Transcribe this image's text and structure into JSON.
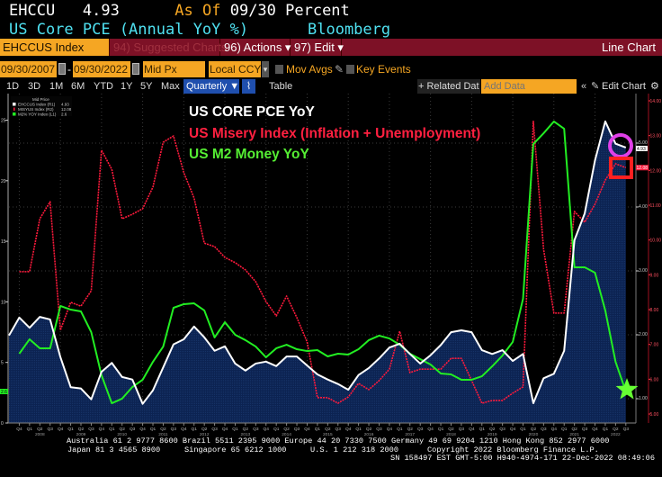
{
  "header": {
    "ticker": "EHCCU",
    "value": "4.93",
    "as_of_label": "As Of",
    "as_of": "09/30 Percent",
    "description": "US Core PCE (Annual YoY %)",
    "source": "Bloomberg"
  },
  "toolbar": {
    "security": "EHCCUS Index",
    "suggested": "94) Suggested Charts",
    "actions": "96) Actions ▾",
    "edit": "97) Edit ▾",
    "chart_type": "Line Chart"
  },
  "controls": {
    "start_date": "09/30/2007",
    "dash": "-",
    "end_date": "09/30/2022",
    "price_field": "Mid Px",
    "currency": "Local CCY",
    "mov_avgs": "Mov Avgs",
    "key_events": "Key Events"
  },
  "periods": [
    "1D",
    "3D",
    "1M",
    "6M",
    "YTD",
    "1Y",
    "5Y",
    "Max"
  ],
  "frequency": "Quarterly ▼",
  "table_label": "Table",
  "related": "+ Related Dat",
  "add_data_placeholder": "Add Data",
  "edit_chart": "Edit Chart",
  "colors": {
    "core_pce": "#ffffff",
    "misery": "#ff1a3c",
    "m2": "#22ee22",
    "fill": "#0c2352",
    "bar": "#7d1126",
    "field": "#f5a623",
    "annotation_circle": "#e040e8",
    "annotation_square": "#ff2020",
    "annotation_star": "#66ff33"
  },
  "footer": {
    "line1": "Australia 61 2 9777 8600 Brazil 5511 2395 9000 Europe 44 20 7330 7500 Germany 49 69 9204 1210 Hong Kong 852 2977 6000",
    "line2a": "Japan 81 3 4565 8900",
    "line2b": "Singapore 65 6212 1000",
    "line2c": "U.S. 1 212 318 2000",
    "line2d": "Copyright 2022 Bloomberg Finance L.P.",
    "line3": "SN 158497 EST  GMT-5:00 H940-4974-171 22-Dec-2022 08:49:06"
  },
  "chart_data": {
    "type": "line",
    "legend_title": "Mid Price",
    "legend_placement": "top-left",
    "annotations": [
      "US CORE PCE YoY",
      "US Misery Index (Inflation + Unemployment)",
      "US M2 Money YoY"
    ],
    "quarter_labels": [
      "Q3",
      "Q4",
      "Q1",
      "Q2",
      "Q3",
      "Q4",
      "Q1",
      "Q2",
      "Q3",
      "Q4",
      "Q1",
      "Q2",
      "Q3",
      "Q4",
      "Q1",
      "Q2",
      "Q3",
      "Q4",
      "Q1",
      "Q2",
      "Q3",
      "Q4",
      "Q1",
      "Q2",
      "Q3",
      "Q4",
      "Q1",
      "Q2",
      "Q3",
      "Q4",
      "Q1",
      "Q2",
      "Q3",
      "Q4",
      "Q1",
      "Q2",
      "Q3",
      "Q4",
      "Q1",
      "Q2",
      "Q3",
      "Q4",
      "Q1",
      "Q2",
      "Q3",
      "Q4",
      "Q1",
      "Q2",
      "Q3",
      "Q4",
      "Q1",
      "Q2",
      "Q3",
      "Q4",
      "Q1",
      "Q2",
      "Q3",
      "Q4",
      "Q1",
      "Q2",
      "Q3"
    ],
    "year_labels": [
      "2008",
      "2009",
      "2010",
      "2011",
      "2012",
      "2013",
      "2014",
      "2015",
      "2016",
      "2017",
      "2018",
      "2019",
      "2020",
      "2021",
      "2022"
    ],
    "axes": {
      "L1": {
        "range": [
          0,
          25
        ],
        "ticks": [
          "25",
          "20",
          "15",
          "10",
          "5",
          "0"
        ],
        "tick_values": [
          25,
          20,
          15,
          10,
          5,
          0
        ]
      },
      "R1": {
        "range": [
          0.6,
          5.8
        ],
        "ticks": [
          "5.00",
          "4.00",
          "3.00",
          "2.00",
          "1.00"
        ],
        "tick_values": [
          5,
          4,
          3,
          2,
          1
        ]
      },
      "R2": {
        "range": [
          4.7,
          14.3
        ],
        "ticks": [
          "14.00",
          "13.00",
          "12.00",
          "11.00",
          "10.00",
          "9.00",
          "8.00",
          "7.00",
          "6.00",
          "5.00"
        ],
        "tick_values": [
          14,
          13,
          12,
          11,
          10,
          9,
          8,
          7,
          6,
          5
        ]
      }
    },
    "grid": true,
    "series": [
      {
        "name": "EHCCUS Index",
        "axis": "R1",
        "last": "4.93",
        "legend": "EHCCUS Index  (R1)",
        "values": [
          1.99,
          2.27,
          2.11,
          2.28,
          2.24,
          1.65,
          1.18,
          1.16,
          0.99,
          1.42,
          1.56,
          1.34,
          1.3,
          0.92,
          1.13,
          1.49,
          1.85,
          1.93,
          2.13,
          1.96,
          1.75,
          1.82,
          1.55,
          1.44,
          1.55,
          1.58,
          1.51,
          1.66,
          1.66,
          1.52,
          1.38,
          1.3,
          1.23,
          1.14,
          1.37,
          1.48,
          1.63,
          1.8,
          1.86,
          1.7,
          1.55,
          1.68,
          1.84,
          2.04,
          2.07,
          2.04,
          1.76,
          1.7,
          1.76,
          1.59,
          1.7,
          0.93,
          1.32,
          1.39,
          1.75,
          3.48,
          3.9,
          4.73,
          5.34,
          4.99,
          4.93
        ]
      },
      {
        "name": "MISYUS Index",
        "axis": "R2",
        "last": "12.08",
        "legend": "MISYUS Index  (R2)",
        "values": [
          null,
          9.09,
          9.09,
          10.61,
          11.1,
          7.41,
          8.21,
          8.1,
          8.54,
          12.58,
          12.03,
          10.61,
          10.74,
          10.9,
          11.52,
          12.81,
          12.99,
          11.94,
          11.21,
          9.91,
          9.81,
          9.5,
          9.35,
          9.14,
          8.8,
          8.23,
          7.82,
          8.39,
          7.77,
          7.07,
          5.47,
          5.47,
          5.31,
          5.49,
          5.88,
          5.7,
          5.96,
          6.29,
          7.38,
          6.19,
          6.29,
          6.29,
          6.29,
          6.6,
          6.6,
          5.96,
          5.31,
          5.39,
          5.39,
          5.6,
          5.78,
          13.41,
          9.73,
          7.9,
          7.9,
          10.82,
          10.51,
          11.03,
          11.72,
          12.19,
          12.08
        ]
      },
      {
        "name": "M2% YOY Index",
        "axis": "L1",
        "last": "2.6",
        "legend": "M2% YOY Index  (L1)",
        "values": [
          null,
          5.72,
          6.91,
          6.17,
          6.17,
          9.66,
          9.36,
          9.21,
          7.5,
          3.94,
          1.63,
          2.01,
          2.97,
          3.57,
          5.05,
          6.31,
          9.51,
          9.81,
          9.88,
          9.29,
          7.06,
          8.32,
          7.28,
          6.84,
          6.31,
          5.42,
          6.17,
          6.46,
          6.09,
          5.94,
          6.02,
          5.5,
          5.72,
          5.65,
          6.09,
          6.84,
          7.21,
          6.98,
          6.46,
          5.72,
          5.27,
          4.83,
          4.09,
          4.01,
          3.57,
          3.57,
          3.86,
          4.68,
          5.57,
          6.69,
          10.25,
          23.03,
          23.92,
          24.89,
          24.29,
          12.85,
          12.85,
          12.41,
          9.29,
          5.05,
          2.6
        ]
      }
    ]
  }
}
